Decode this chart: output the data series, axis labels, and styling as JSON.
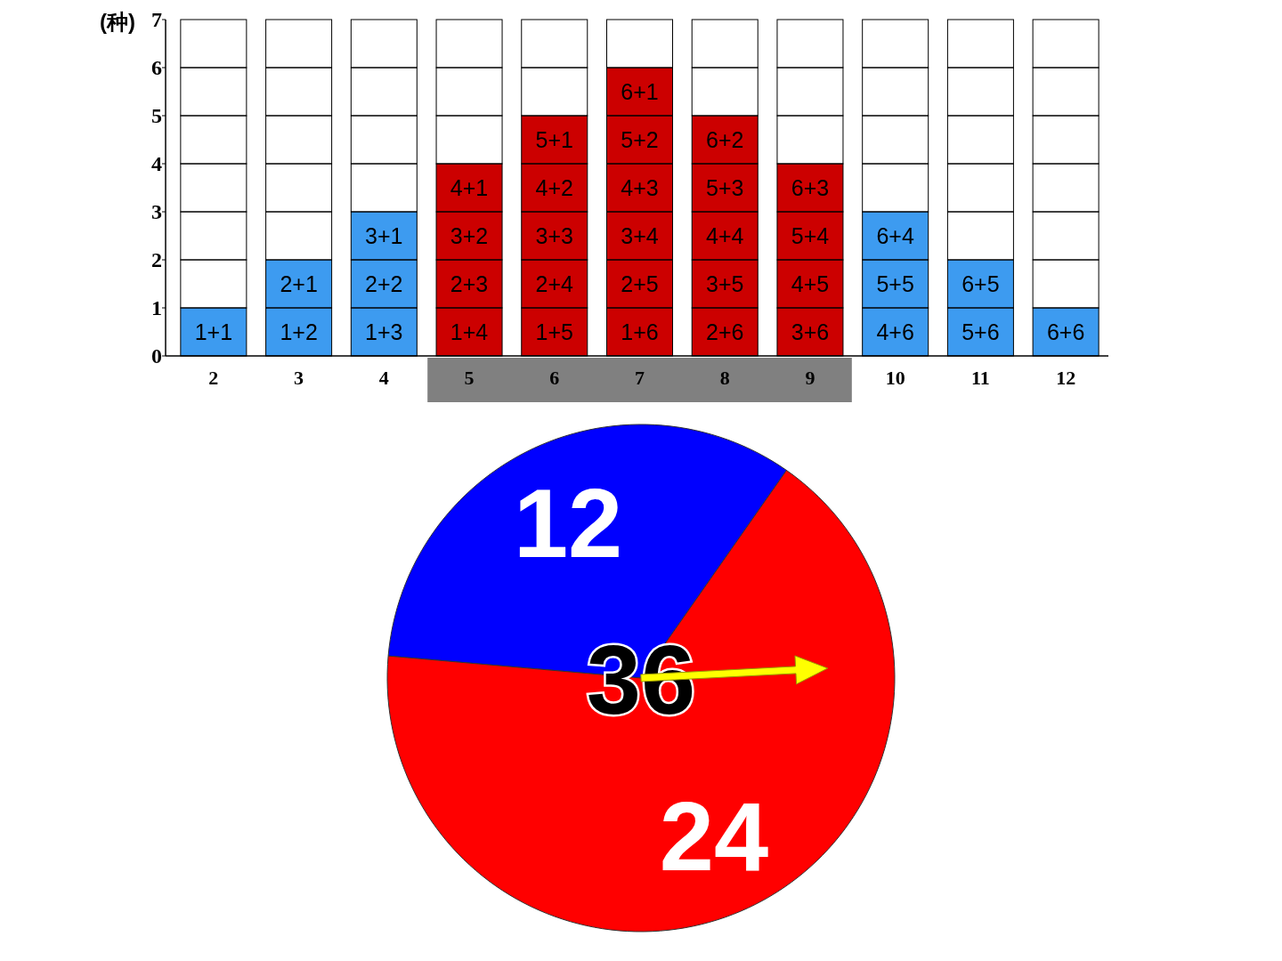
{
  "chart_data": [
    {
      "type": "bar",
      "ylabel": "(种)",
      "categories": [
        "2",
        "3",
        "4",
        "5",
        "6",
        "7",
        "8",
        "9",
        "10",
        "11",
        "12"
      ],
      "values": [
        1,
        2,
        3,
        4,
        5,
        6,
        5,
        4,
        3,
        2,
        1
      ],
      "colors": [
        "#3d9bf0",
        "#3d9bf0",
        "#3d9bf0",
        "#cc0000",
        "#cc0000",
        "#cc0000",
        "#cc0000",
        "#cc0000",
        "#3d9bf0",
        "#3d9bf0",
        "#3d9bf0"
      ],
      "ylim": [
        0,
        7
      ],
      "yticks": [
        0,
        1,
        2,
        3,
        4,
        5,
        6,
        7
      ],
      "annotations": [
        "1+1",
        "1+2",
        "2+1",
        "1+3",
        "2+2",
        "3+1",
        "1+4",
        "2+3",
        "3+2",
        "4+1",
        "1+5",
        "2+4",
        "3+3",
        "4+2",
        "5+1",
        "1+6",
        "2+5",
        "3+4",
        "4+3",
        "5+2",
        "6+1",
        "2+6",
        "3+5",
        "4+4",
        "5+3",
        "6+2",
        "3+6",
        "4+5",
        "5+4",
        "6+3",
        "4+6",
        "5+5",
        "6+4",
        "5+6",
        "6+5",
        "6+6"
      ]
    },
    {
      "type": "pie",
      "categories": [
        null,
        null
      ],
      "values": [
        12,
        24
      ],
      "colors": [
        "#0000ff",
        "#ff0000"
      ],
      "data_labels": true,
      "annotations": [
        "36"
      ]
    }
  ]
}
